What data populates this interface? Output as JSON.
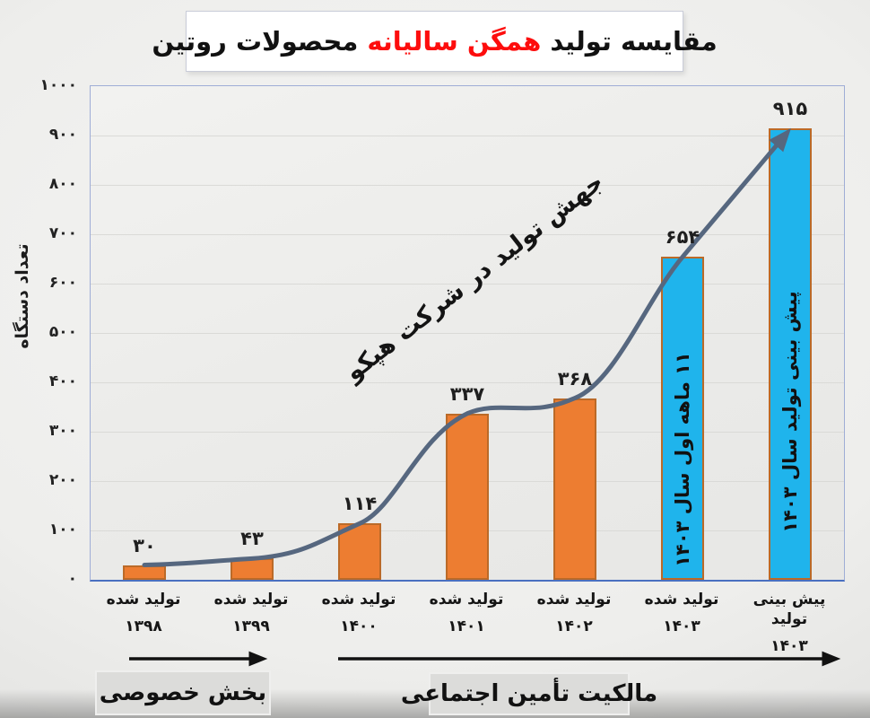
{
  "title": {
    "black1": "مقایسه تولید",
    "red1": "همگن",
    "red2": "سالیانه",
    "black2": "محصولات روتین"
  },
  "annotation": {
    "text": "جهش تولید در شرکت هپکو"
  },
  "footer": {
    "private_sector": "بخش خصوصی",
    "social_security": "مالکیت تأمین اجتماعی"
  },
  "chart_data": {
    "type": "bar",
    "title": "مقایسه تولید همگن سالیانه محصولات روتین",
    "ylabel": "تعداد دستگاه",
    "ylim": [
      0,
      1000
    ],
    "ytick_step": 100,
    "ytick_labels_fa": [
      "۰",
      "۱۰۰",
      "۲۰۰",
      "۳۰۰",
      "۴۰۰",
      "۵۰۰",
      "۶۰۰",
      "۷۰۰",
      "۸۰۰",
      "۹۰۰",
      "۱۰۰۰"
    ],
    "grid": true,
    "categories": [
      {
        "line1": "تولید شده",
        "year_fa": "۱۳۹۸",
        "year": 1398
      },
      {
        "line1": "تولید شده",
        "year_fa": "۱۳۹۹",
        "year": 1399
      },
      {
        "line1": "تولید شده",
        "year_fa": "۱۴۰۰",
        "year": 1400
      },
      {
        "line1": "تولید شده",
        "year_fa": "۱۴۰۱",
        "year": 1401
      },
      {
        "line1": "تولید شده",
        "year_fa": "۱۴۰۲",
        "year": 1402
      },
      {
        "line1": "تولید شده",
        "year_fa": "۱۴۰۳",
        "year": 1403
      },
      {
        "line1": "پیش بینی تولید",
        "year_fa": "۱۴۰۳",
        "year": 1403
      }
    ],
    "values": [
      30,
      43,
      114,
      337,
      368,
      654,
      915
    ],
    "value_labels_fa": [
      "۳۰",
      "۴۳",
      "۱۱۴",
      "۳۳۷",
      "۳۶۸",
      "۶۵۴",
      "۹۱۵"
    ],
    "bar_types": [
      "actual",
      "actual",
      "actual",
      "actual",
      "actual",
      "actual-11-months",
      "forecast"
    ],
    "bar_inner_labels": [
      "",
      "",
      "",
      "",
      "",
      "۱۱ ماهه اول سال ۱۴۰۳",
      "پیش بینی تولید سال ۱۴۰۳"
    ],
    "colors": {
      "bar_orange": "#ED7D31",
      "bar_border": "#BB6A28",
      "bar_blue": "#1FB4EC",
      "trend_line": "#56677F",
      "axis_line": "#4472C4",
      "grid_line": "#dadad7",
      "title_red": "#FD0D0D",
      "footer_arrow": "#111111"
    }
  }
}
